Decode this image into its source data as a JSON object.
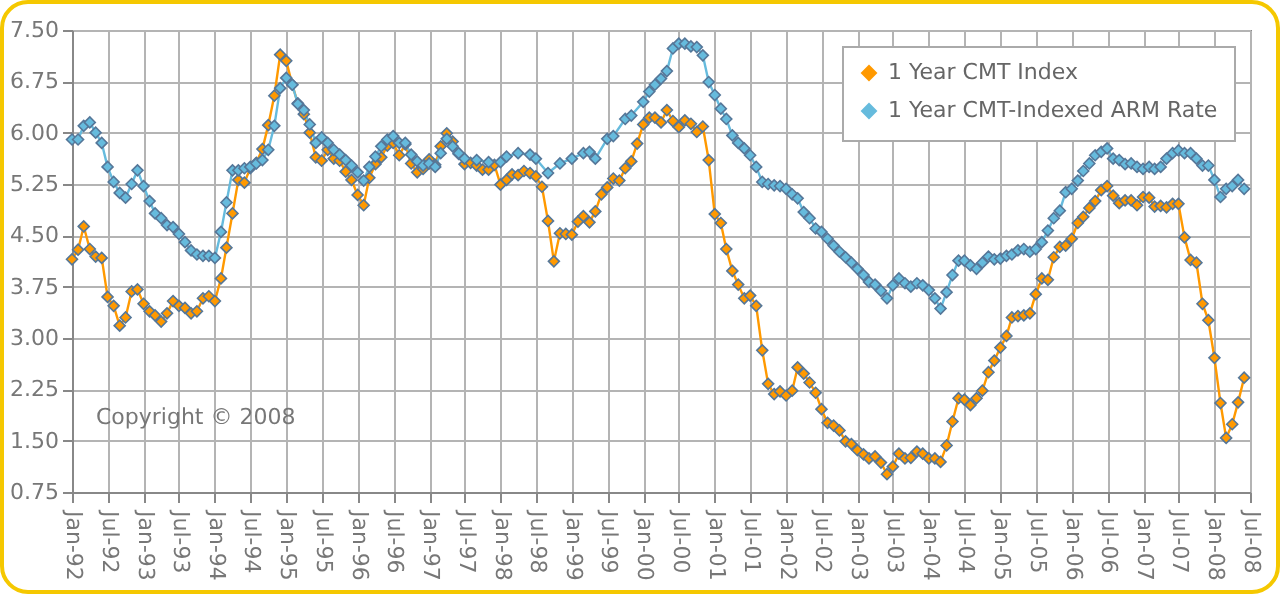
{
  "chart_data": {
    "type": "line",
    "x": [
      "1992-01",
      "1992-02",
      "1992-03",
      "1992-04",
      "1992-05",
      "1992-06",
      "1992-07",
      "1992-08",
      "1992-09",
      "1992-10",
      "1992-11",
      "1992-12",
      "1993-01",
      "1993-02",
      "1993-03",
      "1993-04",
      "1993-05",
      "1993-06",
      "1993-07",
      "1993-08",
      "1993-09",
      "1993-10",
      "1993-11",
      "1993-12",
      "1994-01",
      "1994-02",
      "1994-03",
      "1994-04",
      "1994-05",
      "1994-06",
      "1994-07",
      "1994-08",
      "1994-09",
      "1994-10",
      "1994-11",
      "1994-12",
      "1995-01",
      "1995-02",
      "1995-03",
      "1995-04",
      "1995-05",
      "1995-06",
      "1995-07",
      "1995-08",
      "1995-09",
      "1995-10",
      "1995-11",
      "1995-12",
      "1996-01",
      "1996-02",
      "1996-03",
      "1996-04",
      "1996-05",
      "1996-06",
      "1996-07",
      "1996-08",
      "1996-09",
      "1996-10",
      "1996-11",
      "1996-12",
      "1997-01",
      "1997-02",
      "1997-03",
      "1997-04",
      "1997-05",
      "1997-06",
      "1997-07",
      "1997-08",
      "1997-09",
      "1997-10",
      "1997-11",
      "1997-12",
      "1998-01",
      "1998-02",
      "1998-03",
      "1998-04",
      "1998-05",
      "1998-06",
      "1998-07",
      "1998-08",
      "1998-09",
      "1998-10",
      "1998-11",
      "1998-12",
      "1999-01",
      "1999-02",
      "1999-03",
      "1999-04",
      "1999-05",
      "1999-06",
      "1999-07",
      "1999-08",
      "1999-09",
      "1999-10",
      "1999-11",
      "1999-12",
      "2000-01",
      "2000-02",
      "2000-03",
      "2000-04",
      "2000-05",
      "2000-06",
      "2000-07",
      "2000-08",
      "2000-09",
      "2000-10",
      "2000-11",
      "2000-12",
      "2001-01",
      "2001-02",
      "2001-03",
      "2001-04",
      "2001-05",
      "2001-06",
      "2001-07",
      "2001-08",
      "2001-09",
      "2001-10",
      "2001-11",
      "2001-12",
      "2002-01",
      "2002-02",
      "2002-03",
      "2002-04",
      "2002-05",
      "2002-06",
      "2002-07",
      "2002-08",
      "2002-09",
      "2002-10",
      "2002-11",
      "2002-12",
      "2003-01",
      "2003-02",
      "2003-03",
      "2003-04",
      "2003-05",
      "2003-06",
      "2003-07",
      "2003-08",
      "2003-09",
      "2003-10",
      "2003-11",
      "2003-12",
      "2004-01",
      "2004-02",
      "2004-03",
      "2004-04",
      "2004-05",
      "2004-06",
      "2004-07",
      "2004-08",
      "2004-09",
      "2004-10",
      "2004-11",
      "2004-12",
      "2005-01",
      "2005-02",
      "2005-03",
      "2005-04",
      "2005-05",
      "2005-06",
      "2005-07",
      "2005-08",
      "2005-09",
      "2005-10",
      "2005-11",
      "2005-12",
      "2006-01",
      "2006-02",
      "2006-03",
      "2006-04",
      "2006-05",
      "2006-06",
      "2006-07",
      "2006-08",
      "2006-09",
      "2006-10",
      "2006-11",
      "2006-12",
      "2007-01",
      "2007-02",
      "2007-03",
      "2007-04",
      "2007-05",
      "2007-06",
      "2007-07",
      "2007-08",
      "2007-09",
      "2007-10",
      "2007-11",
      "2007-12",
      "2008-01",
      "2008-02",
      "2008-03",
      "2008-04",
      "2008-05",
      "2008-06"
    ],
    "series": [
      {
        "name": "1 Year CMT Index",
        "color": "#ff9900",
        "values": [
          4.15,
          4.29,
          4.63,
          4.3,
          4.19,
          4.17,
          3.6,
          3.47,
          3.18,
          3.3,
          3.68,
          3.71,
          3.5,
          3.39,
          3.33,
          3.24,
          3.36,
          3.54,
          3.47,
          3.44,
          3.36,
          3.39,
          3.58,
          3.61,
          3.54,
          3.87,
          4.32,
          4.82,
          5.31,
          5.27,
          5.48,
          5.56,
          5.76,
          6.11,
          6.54,
          7.14,
          7.05,
          6.7,
          6.43,
          6.27,
          6.0,
          5.64,
          5.59,
          5.75,
          5.62,
          5.59,
          5.43,
          5.31,
          5.09,
          4.94,
          5.34,
          5.54,
          5.64,
          5.81,
          5.85,
          5.67,
          5.83,
          5.55,
          5.42,
          5.47,
          5.61,
          5.53,
          5.8,
          5.99,
          5.87,
          5.69,
          5.54,
          5.56,
          5.52,
          5.46,
          5.46,
          5.53,
          5.24,
          5.31,
          5.39,
          5.38,
          5.44,
          5.41,
          5.36,
          5.21,
          4.71,
          4.12,
          4.53,
          4.52,
          4.51,
          4.7,
          4.78,
          4.69,
          4.85,
          5.1,
          5.2,
          5.33,
          5.3,
          5.48,
          5.58,
          5.84,
          6.12,
          6.22,
          6.22,
          6.15,
          6.33,
          6.17,
          6.08,
          6.18,
          6.13,
          6.01,
          6.09,
          5.6,
          4.81,
          4.68,
          4.3,
          3.98,
          3.78,
          3.58,
          3.62,
          3.47,
          2.82,
          2.33,
          2.18,
          2.22,
          2.16,
          2.23,
          2.57,
          2.48,
          2.35,
          2.2,
          1.96,
          1.76,
          1.72,
          1.65,
          1.49,
          1.45,
          1.36,
          1.3,
          1.24,
          1.27,
          1.18,
          1.01,
          1.12,
          1.31,
          1.24,
          1.25,
          1.34,
          1.31,
          1.24,
          1.24,
          1.19,
          1.43,
          1.78,
          2.12,
          2.1,
          2.02,
          2.12,
          2.23,
          2.5,
          2.67,
          2.86,
          3.03,
          3.3,
          3.32,
          3.33,
          3.36,
          3.64,
          3.87,
          3.85,
          4.18,
          4.33,
          4.35,
          4.45,
          4.68,
          4.77,
          4.9,
          5.0,
          5.16,
          5.22,
          5.08,
          4.97,
          5.01,
          5.01,
          4.94,
          5.06,
          5.05,
          4.92,
          4.93,
          4.91,
          4.96,
          4.96,
          4.47,
          4.14,
          4.1,
          3.5,
          3.26,
          2.71,
          2.05,
          1.54,
          1.74,
          2.06,
          2.42
        ]
      },
      {
        "name": "1 Year CMT-Indexed ARM Rate",
        "color": "#66bbdd",
        "x": [
          "1992-01",
          "1992-02",
          "1992-03",
          "1992-04",
          "1992-05",
          "1992-06",
          "1992-07",
          "1992-08",
          "1992-09",
          "1992-10",
          "1992-11",
          "1992-12",
          "1993-01",
          "1993-02",
          "1993-03",
          "1993-04",
          "1993-05",
          "1993-06",
          "1993-07",
          "1993-08",
          "1993-09",
          "1993-10",
          "1993-11",
          "1993-12",
          "1994-01",
          "1994-02",
          "1994-03",
          "1994-04",
          "1994-05",
          "1994-06",
          "1994-07",
          "1994-08",
          "1994-09",
          "1994-10",
          "1994-11",
          "1994-12",
          "1995-01",
          "1995-02",
          "1995-03",
          "1995-04",
          "1995-05",
          "1995-06",
          "1995-07",
          "1995-08",
          "1995-09",
          "1995-10",
          "1995-11",
          "1995-12",
          "1996-01",
          "1996-02",
          "1996-03",
          "1996-04",
          "1996-05",
          "1996-06",
          "1996-07",
          "1996-08",
          "1996-09",
          "1996-10",
          "1996-11",
          "1996-12",
          "1997-01",
          "1997-02",
          "1997-03",
          "1997-04",
          "1997-05",
          "1997-06",
          "1997-07",
          "1997-09",
          "1997-11",
          "1998-01",
          "1998-02",
          "1998-04",
          "1998-06",
          "1998-07",
          "1998-09",
          "1998-11",
          "1999-01",
          "1999-03",
          "1999-04",
          "1999-05",
          "1999-07",
          "1999-08",
          "1999-10",
          "1999-11",
          "2000-01",
          "2000-02",
          "2000-03",
          "2000-04",
          "2000-05",
          "2000-06",
          "2000-07",
          "2000-08",
          "2000-09",
          "2000-10",
          "2000-11",
          "2000-12",
          "2001-01",
          "2001-02",
          "2001-03",
          "2001-04",
          "2001-05",
          "2001-06",
          "2001-07",
          "2001-08",
          "2001-09",
          "2001-10",
          "2001-11",
          "2001-12",
          "2002-01",
          "2002-02",
          "2002-03",
          "2002-04",
          "2002-05",
          "2002-06",
          "2002-07",
          "2002-08",
          "2002-09",
          "2002-10",
          "2002-11",
          "2002-12",
          "2003-01",
          "2003-02",
          "2003-03",
          "2003-04",
          "2003-05",
          "2003-06",
          "2003-07",
          "2003-08",
          "2003-09",
          "2003-10",
          "2003-11",
          "2003-12",
          "2004-01",
          "2004-02",
          "2004-03",
          "2004-04",
          "2004-05",
          "2004-06",
          "2004-07",
          "2004-08",
          "2004-09",
          "2004-10",
          "2004-11",
          "2004-12",
          "2005-01",
          "2005-02",
          "2005-03",
          "2005-04",
          "2005-05",
          "2005-06",
          "2005-07",
          "2005-08",
          "2005-09",
          "2005-10",
          "2005-11",
          "2005-12",
          "2006-01",
          "2006-02",
          "2006-03",
          "2006-04",
          "2006-05",
          "2006-06",
          "2006-07",
          "2006-08",
          "2006-09",
          "2006-10",
          "2006-11",
          "2006-12",
          "2007-01",
          "2007-02",
          "2007-03",
          "2007-04",
          "2007-05",
          "2007-06",
          "2007-07",
          "2007-08",
          "2007-09",
          "2007-10",
          "2007-11",
          "2007-12",
          "2008-01",
          "2008-02",
          "2008-03",
          "2008-04",
          "2008-05",
          "2008-06"
        ],
        "values": [
          5.9,
          5.9,
          6.1,
          6.15,
          6.0,
          5.85,
          5.5,
          5.28,
          5.12,
          5.05,
          5.25,
          5.45,
          5.22,
          5.0,
          4.82,
          4.75,
          4.65,
          4.62,
          4.52,
          4.4,
          4.28,
          4.22,
          4.2,
          4.2,
          4.17,
          4.55,
          4.98,
          5.45,
          5.45,
          5.48,
          5.5,
          5.55,
          5.6,
          5.75,
          6.1,
          6.65,
          6.8,
          6.7,
          6.42,
          6.33,
          6.12,
          5.85,
          5.93,
          5.85,
          5.75,
          5.68,
          5.6,
          5.52,
          5.42,
          5.3,
          5.5,
          5.65,
          5.8,
          5.9,
          5.95,
          5.85,
          5.85,
          5.68,
          5.58,
          5.52,
          5.55,
          5.5,
          5.7,
          5.91,
          5.8,
          5.7,
          5.62,
          5.6,
          5.57,
          5.57,
          5.65,
          5.7,
          5.68,
          5.62,
          5.41,
          5.55,
          5.62,
          5.7,
          5.72,
          5.62,
          5.91,
          5.95,
          6.2,
          6.25,
          6.45,
          6.6,
          6.7,
          6.79,
          6.9,
          7.23,
          7.3,
          7.3,
          7.26,
          7.25,
          7.13,
          6.74,
          6.55,
          6.35,
          6.2,
          5.96,
          5.85,
          5.77,
          5.67,
          5.5,
          5.28,
          5.25,
          5.23,
          5.22,
          5.18,
          5.1,
          5.04,
          4.84,
          4.75,
          4.6,
          4.55,
          4.45,
          4.35,
          4.26,
          4.18,
          4.1,
          4.01,
          3.92,
          3.82,
          3.78,
          3.69,
          3.58,
          3.77,
          3.87,
          3.8,
          3.75,
          3.8,
          3.77,
          3.7,
          3.58,
          3.43,
          3.67,
          3.92,
          4.13,
          4.13,
          4.06,
          4.01,
          4.1,
          4.19,
          4.15,
          4.16,
          4.2,
          4.22,
          4.28,
          4.3,
          4.26,
          4.3,
          4.4,
          4.57,
          4.75,
          4.86,
          5.13,
          5.18,
          5.3,
          5.44,
          5.55,
          5.67,
          5.72,
          5.77,
          5.62,
          5.6,
          5.54,
          5.55,
          5.5,
          5.47,
          5.5,
          5.47,
          5.5,
          5.62,
          5.7,
          5.74,
          5.7,
          5.7,
          5.62,
          5.52,
          5.52,
          5.31,
          5.06,
          5.18,
          5.22,
          5.31,
          5.18
        ]
      }
    ],
    "xlim": [
      "1992-01",
      "2008-07"
    ],
    "xticks": [
      {
        "value": "1992-01",
        "label": "Jan-92"
      },
      {
        "value": "1992-07",
        "label": "Jul-92"
      },
      {
        "value": "1993-01",
        "label": "Jan-93"
      },
      {
        "value": "1993-07",
        "label": "Jul-93"
      },
      {
        "value": "1994-01",
        "label": "Jan-94"
      },
      {
        "value": "1994-07",
        "label": "Jul-94"
      },
      {
        "value": "1995-01",
        "label": "Jan-95"
      },
      {
        "value": "1995-07",
        "label": "Jul-95"
      },
      {
        "value": "1996-01",
        "label": "Jan-96"
      },
      {
        "value": "1996-07",
        "label": "Jul-96"
      },
      {
        "value": "1997-01",
        "label": "Jan-97"
      },
      {
        "value": "1997-07",
        "label": "Jul-97"
      },
      {
        "value": "1998-01",
        "label": "Jan-98"
      },
      {
        "value": "1998-07",
        "label": "Jul-98"
      },
      {
        "value": "1999-01",
        "label": "Jan-99"
      },
      {
        "value": "1999-07",
        "label": "Jul-99"
      },
      {
        "value": "2000-01",
        "label": "Jan-00"
      },
      {
        "value": "2000-07",
        "label": "Jul-00"
      },
      {
        "value": "2001-01",
        "label": "Jan-01"
      },
      {
        "value": "2001-07",
        "label": "Jul-01"
      },
      {
        "value": "2002-01",
        "label": "Jan-02"
      },
      {
        "value": "2002-07",
        "label": "Jul-02"
      },
      {
        "value": "2003-01",
        "label": "Jan-03"
      },
      {
        "value": "2003-07",
        "label": "Jul-03"
      },
      {
        "value": "2004-01",
        "label": "Jan-04"
      },
      {
        "value": "2004-07",
        "label": "Jul-04"
      },
      {
        "value": "2005-01",
        "label": "Jan-05"
      },
      {
        "value": "2005-07",
        "label": "Jul-05"
      },
      {
        "value": "2006-01",
        "label": "Jan-06"
      },
      {
        "value": "2006-07",
        "label": "Jul-06"
      },
      {
        "value": "2007-01",
        "label": "Jan-07"
      },
      {
        "value": "2007-07",
        "label": "Jul-07"
      },
      {
        "value": "2008-01",
        "label": "Jan-08"
      },
      {
        "value": "2008-07",
        "label": "Jul-08"
      }
    ],
    "ylim": [
      0.75,
      7.5
    ],
    "yticks": [
      {
        "value": 0.75,
        "label": "0.75"
      },
      {
        "value": 1.5,
        "label": "1.50"
      },
      {
        "value": 2.25,
        "label": "2.25"
      },
      {
        "value": 3,
        "label": "3.00"
      },
      {
        "value": 3.75,
        "label": "3.75"
      },
      {
        "value": 4.5,
        "label": "4.50"
      },
      {
        "value": 5.25,
        "label": "5.25"
      },
      {
        "value": 6,
        "label": "6.00"
      },
      {
        "value": 6.75,
        "label": "6.75"
      },
      {
        "value": 7.5,
        "label": "7.50"
      }
    ],
    "grid": true,
    "legend": "top right",
    "marker": "diamond",
    "annotations": [
      "Copyright © 2008"
    ]
  }
}
